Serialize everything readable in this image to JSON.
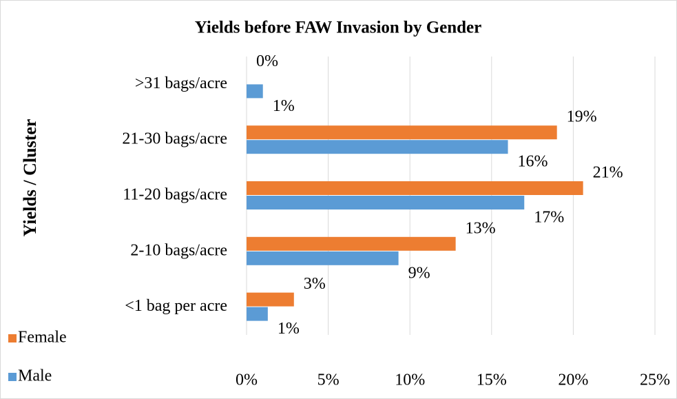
{
  "chart_data": {
    "type": "hbar",
    "title": "Yields before FAW Invasion by Gender",
    "y_axis_label": "Yields / Cluster",
    "categories": [
      ">31 bags/acre",
      "21-30 bags/acre",
      "11-20 bags/acre",
      "2-10 bags/acre",
      "<1 bag per acre"
    ],
    "series": [
      {
        "name": "Female",
        "color": "#ed7d31",
        "values": [
          0,
          19,
          20.6,
          12.8,
          2.9
        ],
        "value_labels": [
          "0%",
          "19%",
          "21%",
          "13%",
          "3%"
        ]
      },
      {
        "name": "Male",
        "color": "#5b9bd5",
        "values": [
          1,
          16,
          17,
          9.3,
          1.3
        ],
        "value_labels": [
          "1%",
          "16%",
          "17%",
          "9%",
          "1%"
        ]
      }
    ],
    "xlim": [
      0,
      25
    ],
    "xticks": [
      {
        "value": 0,
        "label": "0%"
      },
      {
        "value": 5,
        "label": "5%"
      },
      {
        "value": 10,
        "label": "10%"
      },
      {
        "value": 15,
        "label": "15%"
      },
      {
        "value": 20,
        "label": "20%"
      },
      {
        "value": 25,
        "label": "25%"
      }
    ],
    "grid": true,
    "legend": "bottom-left"
  }
}
